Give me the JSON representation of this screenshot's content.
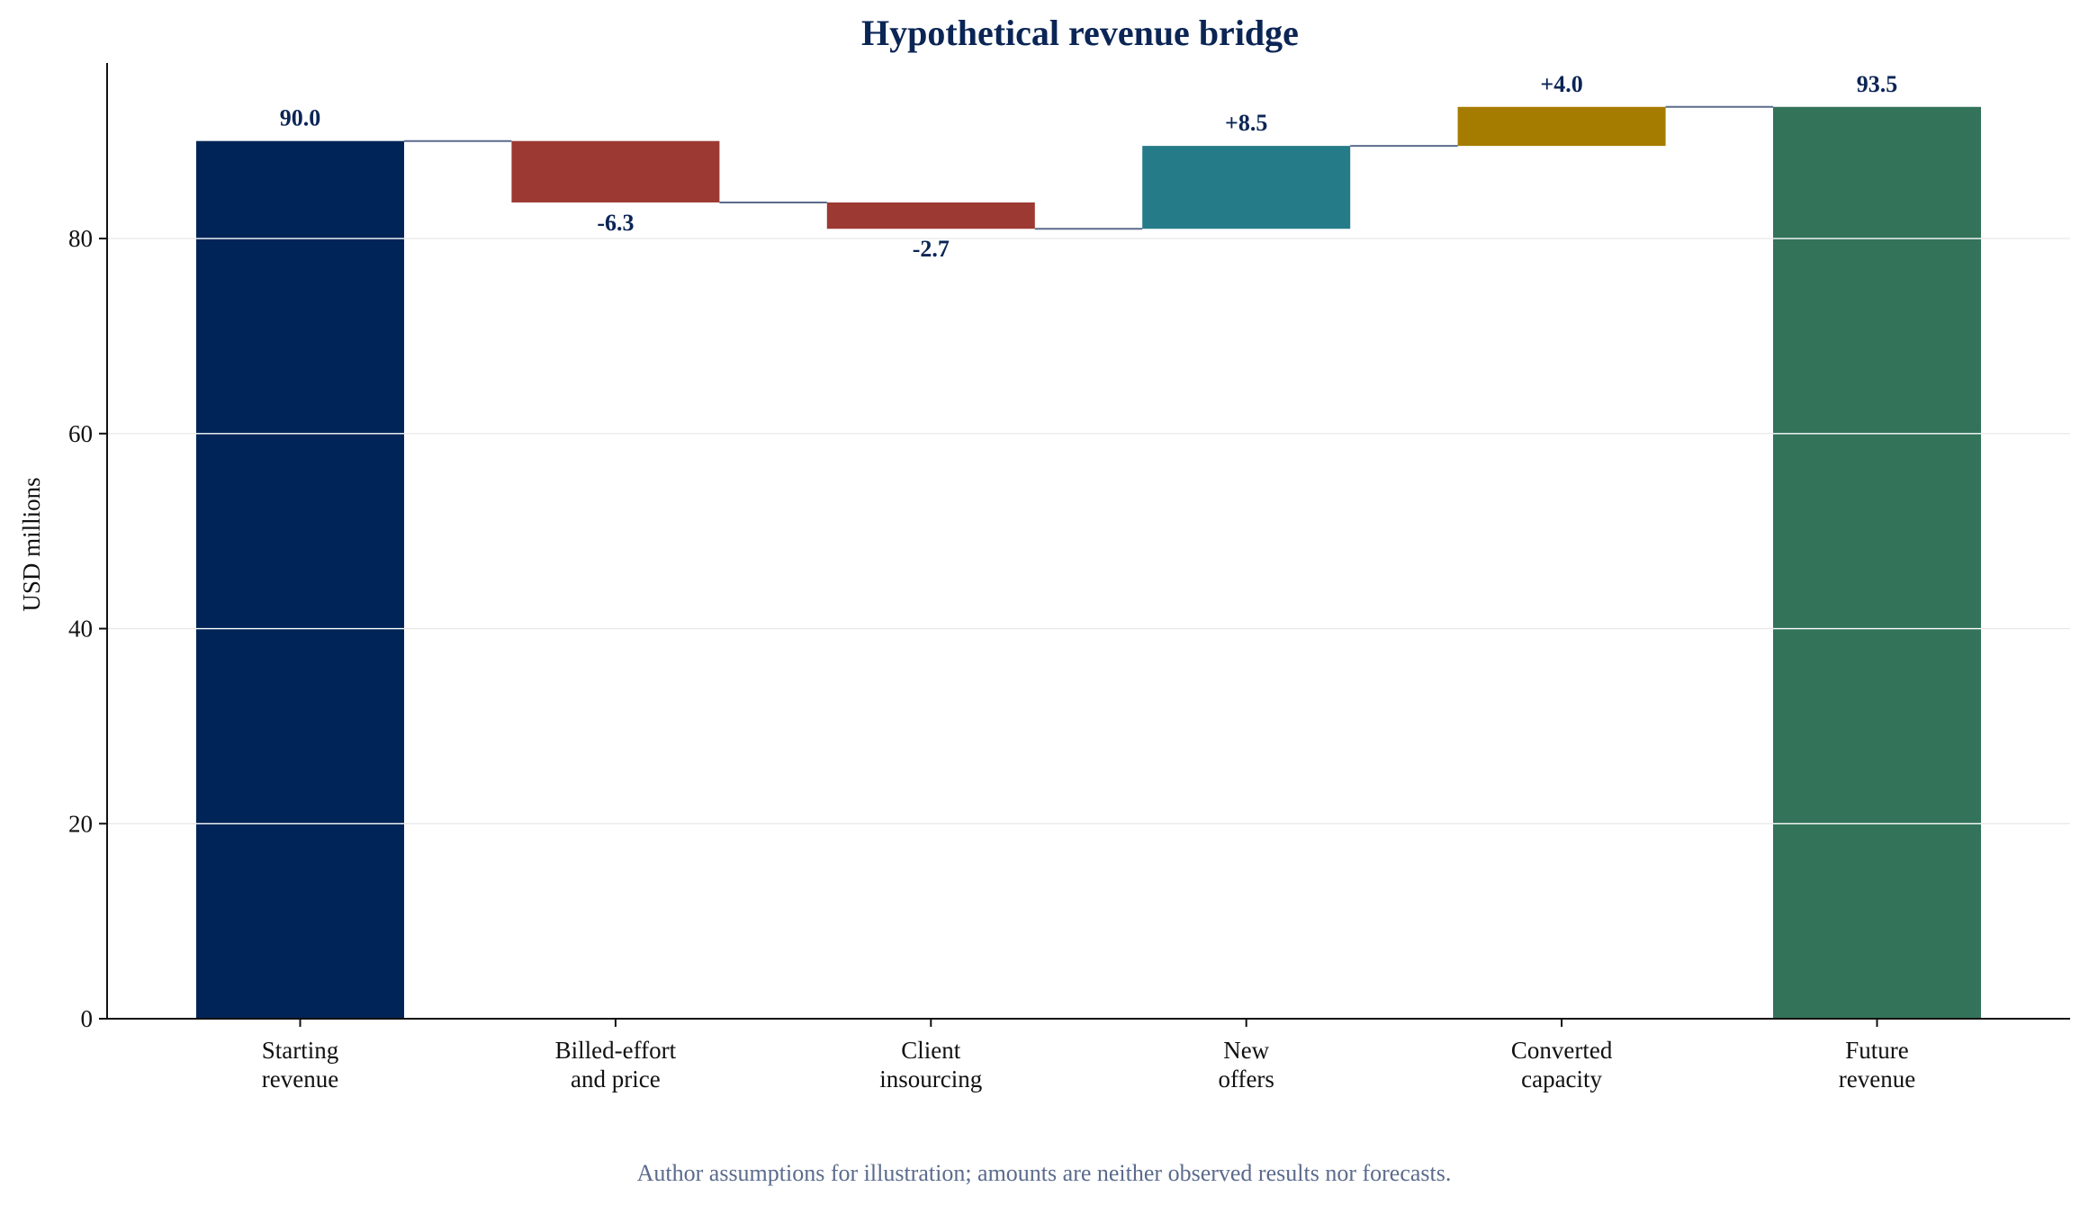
{
  "chart_data": {
    "type": "bar",
    "subtype": "waterfall",
    "title": "Hypothetical revenue bridge",
    "ylabel": "USD millions",
    "xlabel": "",
    "ylim": [
      0,
      98
    ],
    "yticks": [
      0,
      20,
      40,
      60,
      80
    ],
    "grid": true,
    "categories": [
      [
        "Starting",
        "revenue"
      ],
      [
        "Billed-effort",
        "and price"
      ],
      [
        "Client",
        "insourcing"
      ],
      [
        "New",
        "offers"
      ],
      [
        "Converted",
        "capacity"
      ],
      [
        "Future",
        "revenue"
      ]
    ],
    "steps": [
      {
        "kind": "total",
        "value": 90.0,
        "label": "90.0",
        "color": "#002457"
      },
      {
        "kind": "delta",
        "value": -6.3,
        "label": "-6.3",
        "color": "#9c3932"
      },
      {
        "kind": "delta",
        "value": -2.7,
        "label": "-2.7",
        "color": "#9c3932"
      },
      {
        "kind": "delta",
        "value": 8.5,
        "label": "+8.5",
        "color": "#257b88"
      },
      {
        "kind": "delta",
        "value": 4.0,
        "label": "+4.0",
        "color": "#a67c00"
      },
      {
        "kind": "total",
        "value": 93.5,
        "label": "93.5",
        "color": "#33735a"
      }
    ],
    "connector_color": "#5b6b8c",
    "footnote": "Author assumptions for illustration; amounts are neither observed results nor forecasts."
  }
}
